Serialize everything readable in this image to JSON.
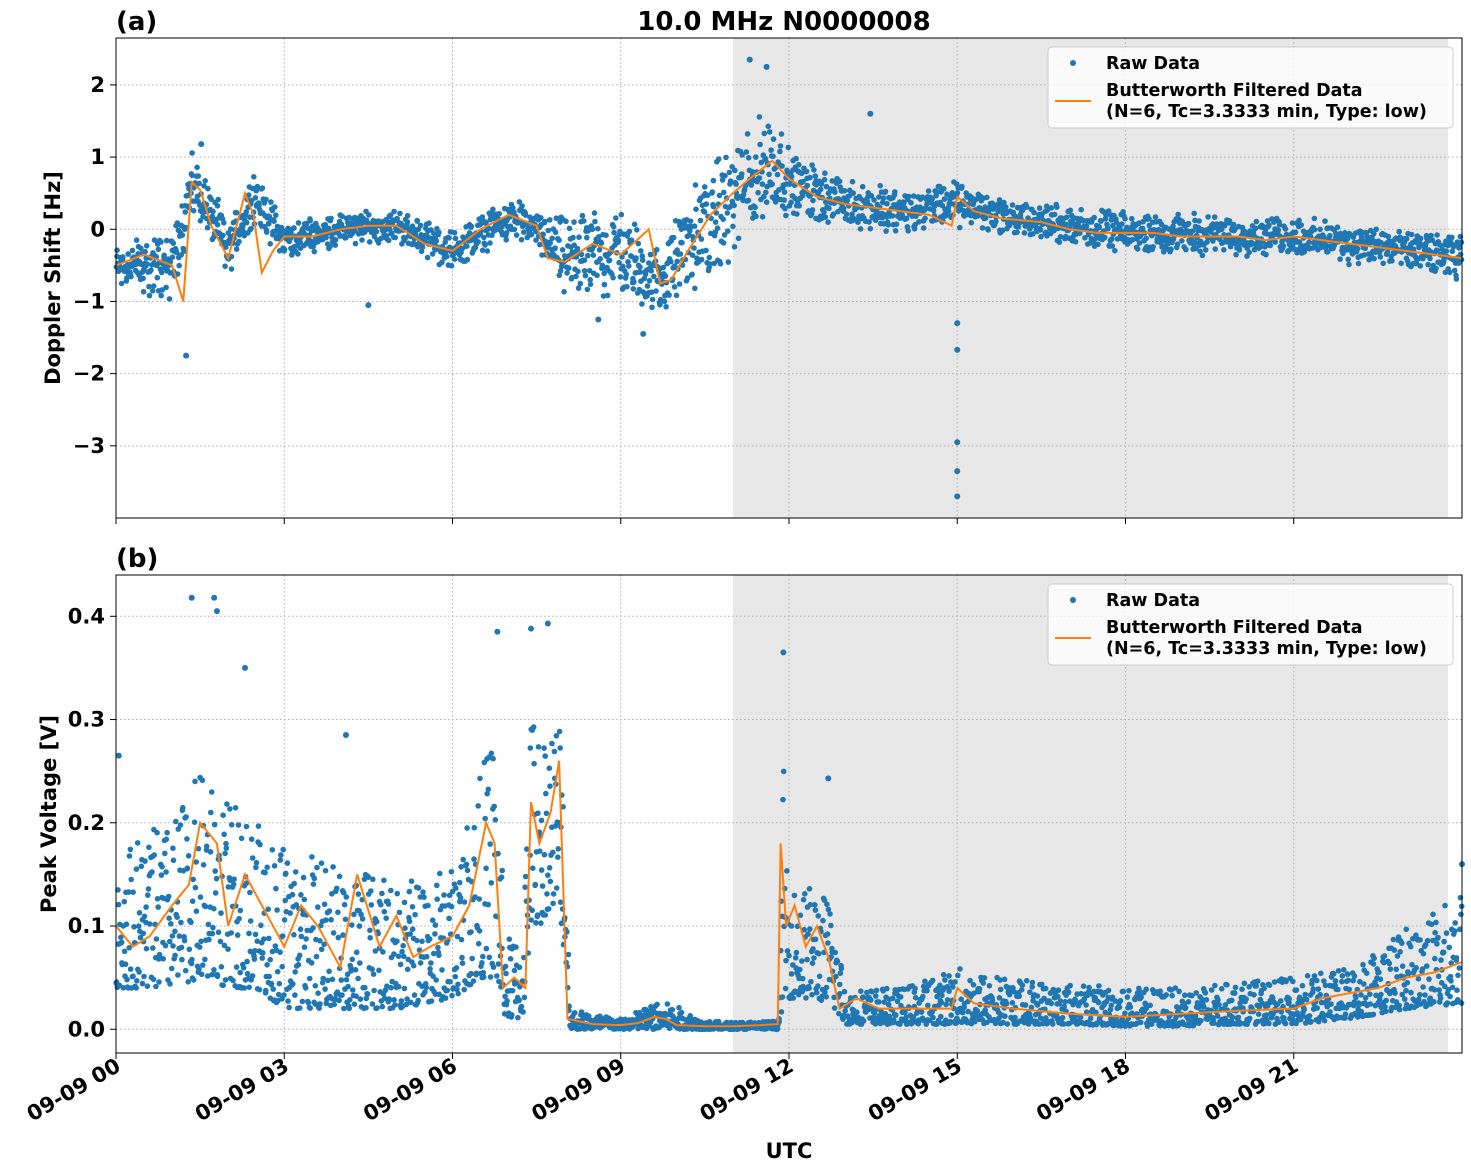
{
  "chart_data": {
    "title": "10.0 MHz N0000008",
    "xlabel": "UTC",
    "x_tick_labels": [
      "09-09 00",
      "09-09 03",
      "09-09 06",
      "09-09 09",
      "09-09 12",
      "09-09 15",
      "09-09 18",
      "09-09 21"
    ],
    "x_tick_hours": [
      0,
      3,
      6,
      9,
      12,
      15,
      18,
      21
    ],
    "xlim_hours": [
      0,
      24
    ],
    "shaded_region_hours": [
      11,
      23.75
    ],
    "grid": true,
    "colors": {
      "raw": "#1f77b4",
      "filtered": "#ff7f0e",
      "shade": "#e8e8e8",
      "grid": "#b0b0b0"
    },
    "legend_labels": {
      "raw": "Raw Data",
      "filtered_line1": "Butterworth Filtered Data",
      "filtered_line2": "(N=6, Tc=3.3333 min, Type: low)"
    },
    "panels": [
      {
        "label": "(a)",
        "type": "scatter+line",
        "ylabel": "Doppler Shift [Hz]",
        "ylim": [
          -4.0,
          2.65
        ],
        "y_ticks": [
          2,
          1,
          0,
          -1,
          -2,
          -3
        ],
        "y_tick_labels": [
          "2",
          "1",
          "0",
          "−1",
          "−2",
          "−3"
        ],
        "legend_position": "top-right",
        "series": [
          {
            "name": "Butterworth Filtered Data",
            "x_hours": [
              0,
              0.5,
              1.0,
              1.2,
              1.35,
              1.5,
              1.7,
              2.0,
              2.3,
              2.45,
              2.6,
              2.8,
              3.0,
              3.5,
              4.0,
              4.5,
              5.0,
              5.5,
              6.0,
              6.5,
              7.0,
              7.5,
              7.7,
              8.0,
              8.5,
              9.0,
              9.5,
              9.7,
              9.9,
              10.2,
              10.6,
              11.0,
              11.3,
              11.7,
              12.0,
              12.5,
              13.0,
              13.5,
              14.0,
              14.5,
              14.9,
              15.0,
              15.3,
              15.8,
              16.5,
              17.0,
              17.5,
              18.0,
              18.5,
              19.0,
              19.5,
              20.0,
              20.5,
              21.0,
              21.5,
              22.0,
              22.5,
              23.0,
              23.5,
              24.0
            ],
            "y": [
              -0.5,
              -0.35,
              -0.5,
              -1.0,
              0.65,
              0.55,
              0.05,
              -0.4,
              0.5,
              0.2,
              -0.6,
              -0.3,
              -0.1,
              -0.1,
              0.0,
              0.05,
              0.05,
              -0.2,
              -0.3,
              0.0,
              0.2,
              0.05,
              -0.4,
              -0.45,
              -0.2,
              -0.35,
              0.0,
              -0.75,
              -0.7,
              -0.3,
              0.2,
              0.5,
              0.7,
              0.95,
              0.7,
              0.45,
              0.35,
              0.3,
              0.25,
              0.2,
              0.05,
              0.45,
              0.25,
              0.15,
              0.1,
              0.0,
              -0.05,
              -0.05,
              -0.05,
              -0.1,
              -0.1,
              -0.1,
              -0.15,
              -0.1,
              -0.15,
              -0.2,
              -0.25,
              -0.3,
              -0.35,
              -0.4
            ]
          },
          {
            "name": "Raw Data",
            "envelope_x_hours": [
              0,
              1.0,
              1.35,
              1.5,
              2.0,
              2.45,
              3.0,
              4.0,
              5.0,
              6.0,
              7.0,
              7.5,
              8.0,
              9.0,
              9.7,
              10.2,
              11.0,
              11.7,
              12.0,
              13.0,
              14.0,
              15.0,
              16.0,
              17.0,
              18.0,
              19.0,
              20.0,
              21.0,
              22.0,
              23.0,
              24.0
            ],
            "envelope_center": [
              -0.5,
              -0.5,
              0.6,
              0.5,
              -0.3,
              0.45,
              -0.15,
              0.0,
              0.05,
              -0.3,
              0.15,
              0.0,
              -0.4,
              -0.3,
              -0.75,
              -0.2,
              0.4,
              0.95,
              0.65,
              0.35,
              0.25,
              0.35,
              0.15,
              0.05,
              -0.05,
              -0.05,
              -0.1,
              -0.1,
              -0.2,
              -0.3,
              -0.4
            ],
            "envelope_halfwidth": [
              0.35,
              0.6,
              0.5,
              0.45,
              0.45,
              0.4,
              0.3,
              0.25,
              0.25,
              0.3,
              0.3,
              0.3,
              0.6,
              0.7,
              0.5,
              0.8,
              0.9,
              0.9,
              0.5,
              0.4,
              0.35,
              0.35,
              0.3,
              0.3,
              0.3,
              0.3,
              0.3,
              0.3,
              0.3,
              0.3,
              0.35
            ],
            "outliers": [
              [
                1.52,
                1.18
              ],
              [
                11.3,
                2.35
              ],
              [
                11.6,
                2.25
              ],
              [
                13.45,
                1.6
              ],
              [
                15.0,
                -1.3
              ],
              [
                15.0,
                -1.67
              ],
              [
                15.0,
                -2.95
              ],
              [
                15.0,
                -3.35
              ],
              [
                15.0,
                -3.7
              ],
              [
                1.25,
                -1.75
              ],
              [
                8.6,
                -1.25
              ],
              [
                9.4,
                -1.45
              ],
              [
                4.5,
                -1.05
              ]
            ]
          }
        ]
      },
      {
        "label": "(b)",
        "type": "scatter+line",
        "ylabel": "Peak Voltage [V]",
        "ylim": [
          -0.023,
          0.44
        ],
        "y_ticks": [
          0.0,
          0.1,
          0.2,
          0.3,
          0.4
        ],
        "y_tick_labels": [
          "0.0",
          "0.1",
          "0.2",
          "0.3",
          "0.4"
        ],
        "legend_position": "top-right",
        "series": [
          {
            "name": "Butterworth Filtered Data",
            "x_hours": [
              0,
              0.3,
              0.6,
              1.0,
              1.3,
              1.5,
              1.8,
              2.0,
              2.3,
              2.6,
              3.0,
              3.3,
              3.6,
              4.0,
              4.3,
              4.7,
              5.0,
              5.3,
              5.6,
              6.0,
              6.3,
              6.6,
              6.75,
              6.9,
              7.1,
              7.3,
              7.4,
              7.55,
              7.75,
              7.9,
              8.05,
              8.5,
              9.0,
              9.3,
              9.6,
              9.8,
              10.0,
              10.5,
              11.0,
              11.5,
              11.8,
              11.85,
              11.95,
              12.1,
              12.3,
              12.5,
              12.7,
              12.9,
              13.2,
              13.6,
              14.0,
              14.5,
              14.9,
              15.0,
              15.3,
              16.0,
              17.0,
              18.0,
              19.0,
              20.0,
              21.0,
              21.5,
              22.0,
              22.5,
              23.0,
              23.5,
              24.0
            ],
            "y": [
              0.1,
              0.08,
              0.09,
              0.12,
              0.14,
              0.2,
              0.18,
              0.1,
              0.15,
              0.12,
              0.08,
              0.12,
              0.1,
              0.06,
              0.15,
              0.08,
              0.11,
              0.07,
              0.08,
              0.09,
              0.12,
              0.2,
              0.18,
              0.04,
              0.05,
              0.04,
              0.22,
              0.18,
              0.21,
              0.26,
              0.01,
              0.005,
              0.004,
              0.006,
              0.012,
              0.01,
              0.004,
              0.003,
              0.003,
              0.004,
              0.005,
              0.18,
              0.1,
              0.12,
              0.08,
              0.1,
              0.07,
              0.02,
              0.03,
              0.02,
              0.02,
              0.02,
              0.02,
              0.04,
              0.025,
              0.02,
              0.015,
              0.012,
              0.015,
              0.018,
              0.02,
              0.03,
              0.035,
              0.04,
              0.05,
              0.055,
              0.065
            ]
          },
          {
            "name": "Raw Data",
            "envelope_x_hours": [
              0,
              1.0,
              1.5,
              2.0,
              2.5,
              3.0,
              4.0,
              5.0,
              6.0,
              6.5,
              6.75,
              6.95,
              7.25,
              7.4,
              7.55,
              7.75,
              7.95,
              8.1,
              9.0,
              9.6,
              9.9,
              10.5,
              11.0,
              11.5,
              11.82,
              11.9,
              12.0,
              12.5,
              12.8,
              13.0,
              14.0,
              15.0,
              16.0,
              17.0,
              18.0,
              19.0,
              20.0,
              21.0,
              22.0,
              23.0,
              24.0
            ],
            "envelope_low": [
              0.04,
              0.04,
              0.05,
              0.04,
              0.04,
              0.02,
              0.02,
              0.02,
              0.03,
              0.05,
              0.05,
              0.01,
              0.01,
              0.1,
              0.1,
              0.12,
              0.1,
              0.0,
              0.0,
              0.0,
              0.0,
              0.0,
              0.0,
              0.0,
              0.0,
              0.03,
              0.03,
              0.03,
              0.02,
              0.005,
              0.005,
              0.005,
              0.005,
              0.005,
              0.003,
              0.003,
              0.005,
              0.005,
              0.01,
              0.02,
              0.025
            ],
            "envelope_high": [
              0.18,
              0.2,
              0.25,
              0.22,
              0.2,
              0.18,
              0.16,
              0.14,
              0.16,
              0.25,
              0.3,
              0.09,
              0.09,
              0.32,
              0.3,
              0.3,
              0.33,
              0.02,
              0.01,
              0.025,
              0.025,
              0.008,
              0.007,
              0.008,
              0.008,
              0.26,
              0.14,
              0.14,
              0.12,
              0.04,
              0.04,
              0.06,
              0.05,
              0.045,
              0.04,
              0.04,
              0.045,
              0.05,
              0.06,
              0.1,
              0.13
            ],
            "outliers": [
              [
                1.35,
                0.418
              ],
              [
                1.75,
                0.418
              ],
              [
                1.8,
                0.405
              ],
              [
                2.3,
                0.35
              ],
              [
                6.8,
                0.385
              ],
              [
                7.4,
                0.388
              ],
              [
                7.7,
                0.393
              ],
              [
                11.9,
                0.365
              ],
              [
                4.1,
                0.285
              ],
              [
                12.7,
                0.243
              ],
              [
                0.05,
                0.265
              ],
              [
                24.0,
                0.16
              ]
            ]
          }
        ]
      }
    ]
  }
}
